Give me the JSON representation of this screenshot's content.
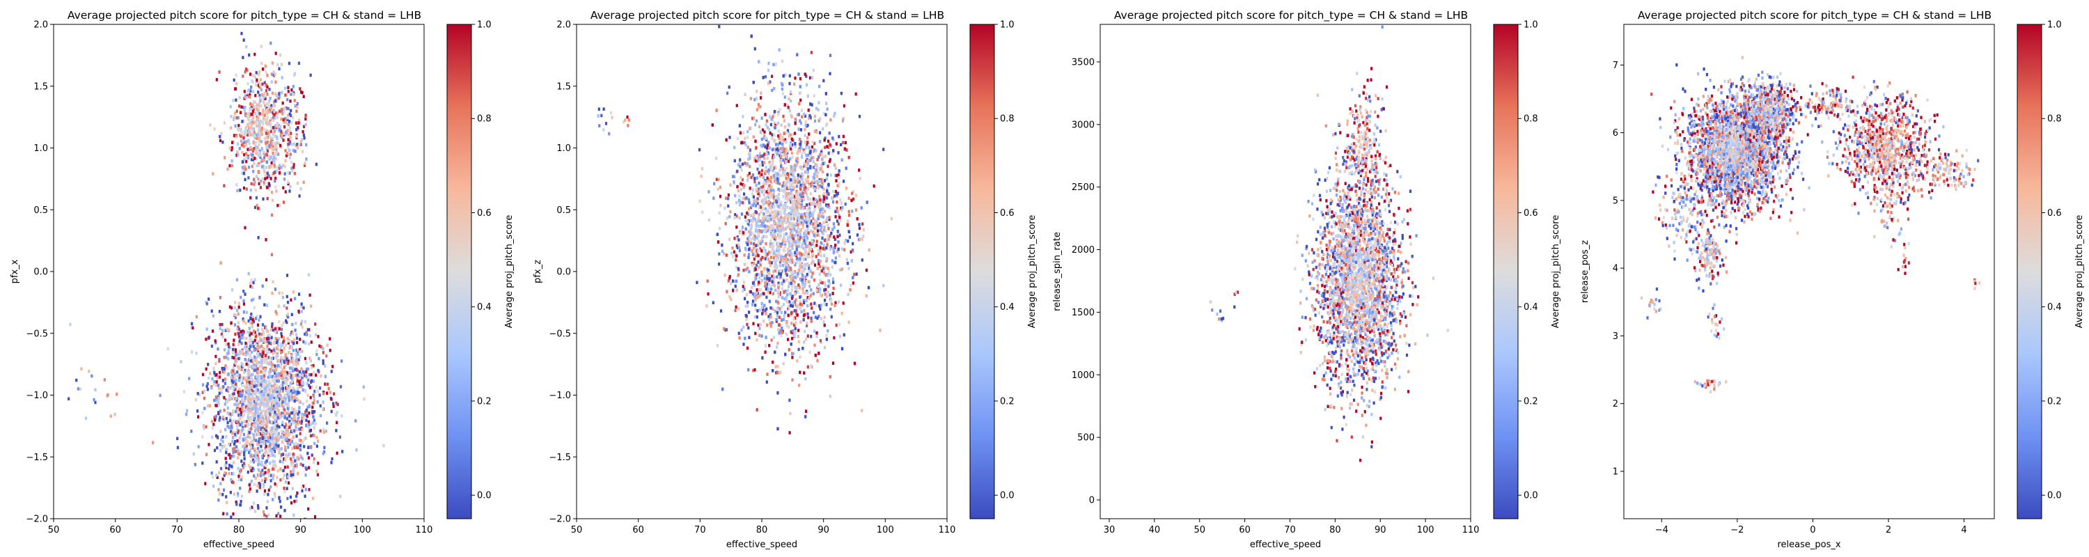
{
  "figure": {
    "colormap": [
      "#3b4cc0",
      "#6f92f3",
      "#aac7fd",
      "#dddcdc",
      "#f7b89c",
      "#e7745b",
      "#b40426"
    ]
  },
  "chart_data": [
    {
      "type": "heatmap",
      "title": "Average projected pitch score for pitch_type = CH & stand = LHB",
      "xlabel": "effective_speed",
      "ylabel": "pfx_x",
      "xlim": [
        50,
        110
      ],
      "ylim": [
        -2.0,
        2.0
      ],
      "xticks": [
        50,
        60,
        70,
        80,
        90,
        100,
        110
      ],
      "yticks": [
        -2.0,
        -1.5,
        -1.0,
        -0.5,
        0.0,
        0.5,
        1.0,
        1.5,
        2.0
      ],
      "ytick_labels": [
        "−2.0",
        "−1.5",
        "−1.0",
        "−0.5",
        "0.0",
        "0.5",
        "1.0",
        "1.5",
        "2.0"
      ],
      "colorbar": {
        "label": "Average proj_pitch_score",
        "ticks": [
          0.0,
          0.2,
          0.4,
          0.6,
          0.8,
          1.0
        ],
        "tick_labels": [
          "0.0",
          "0.2",
          "0.4",
          "0.6",
          "0.8",
          "1.0"
        ],
        "range": [
          -0.05,
          1.0
        ]
      },
      "clusters": [
        {
          "x": 84,
          "y": -1.05,
          "sx": 4.5,
          "sy": 0.38,
          "mean": 0.42,
          "n": 2400
        },
        {
          "x": 84,
          "y": 1.15,
          "sx": 3.0,
          "sy": 0.26,
          "mean": 0.55,
          "n": 750
        },
        {
          "x": 54.5,
          "y": -0.95,
          "sx": 1.0,
          "sy": 0.15,
          "mean": 0.2,
          "n": 12
        },
        {
          "x": 59,
          "y": -1.1,
          "sx": 0.6,
          "sy": 0.12,
          "mean": 0.7,
          "n": 6
        }
      ]
    },
    {
      "type": "heatmap",
      "title": "Average projected pitch score for pitch_type = CH & stand = LHB",
      "xlabel": "effective_speed",
      "ylabel": "pfx_z",
      "xlim": [
        50,
        110
      ],
      "ylim": [
        -2.0,
        2.0
      ],
      "xticks": [
        50,
        60,
        70,
        80,
        90,
        100,
        110
      ],
      "yticks": [
        -2.0,
        -1.5,
        -1.0,
        -0.5,
        0.0,
        0.5,
        1.0,
        1.5,
        2.0
      ],
      "ytick_labels": [
        "−2.0",
        "−1.5",
        "−1.0",
        "−0.5",
        "0.0",
        "0.5",
        "1.0",
        "1.5",
        "2.0"
      ],
      "colorbar": {
        "label": "Average proj_pitch_score",
        "ticks": [
          0.0,
          0.2,
          0.4,
          0.6,
          0.8,
          1.0
        ],
        "tick_labels": [
          "0.0",
          "0.2",
          "0.4",
          "0.6",
          "0.8",
          "1.0"
        ],
        "range": [
          -0.05,
          1.0
        ]
      },
      "clusters": [
        {
          "x": 84,
          "y": 0.4,
          "sx": 4.7,
          "sy": 0.5,
          "mean": 0.45,
          "n": 3200
        },
        {
          "x": 54.5,
          "y": 1.25,
          "sx": 1.0,
          "sy": 0.07,
          "mean": 0.2,
          "n": 10
        },
        {
          "x": 58,
          "y": 1.2,
          "sx": 0.6,
          "sy": 0.05,
          "mean": 0.7,
          "n": 5
        }
      ]
    },
    {
      "type": "heatmap",
      "title": "Average projected pitch score for pitch_type = CH & stand = LHB",
      "xlabel": "effective_speed",
      "ylabel": "release_spin_rate",
      "xlim": [
        28,
        110
      ],
      "ylim": [
        -150,
        3800
      ],
      "xticks": [
        30,
        40,
        50,
        60,
        70,
        80,
        90,
        100,
        110
      ],
      "yticks": [
        0,
        500,
        1000,
        1500,
        2000,
        2500,
        3000,
        3500
      ],
      "ytick_labels": [
        "0",
        "500",
        "1000",
        "1500",
        "2000",
        "2500",
        "3000",
        "3500"
      ],
      "colorbar": {
        "label": "Average proj_pitch_score",
        "ticks": [
          0.0,
          0.2,
          0.4,
          0.6,
          0.8,
          1.0
        ],
        "tick_labels": [
          "0.0",
          "0.2",
          "0.4",
          "0.6",
          "0.8",
          "1.0"
        ],
        "range": [
          -0.05,
          1.0
        ]
      },
      "clusters": [
        {
          "x": 85,
          "y": 1750,
          "sx": 4.6,
          "sy": 420,
          "mean": 0.45,
          "n": 2600
        },
        {
          "x": 86,
          "y": 2850,
          "sx": 2.2,
          "sy": 220,
          "mean": 0.6,
          "n": 220
        },
        {
          "x": 54,
          "y": 1500,
          "sx": 0.8,
          "sy": 60,
          "mean": 0.2,
          "n": 8
        },
        {
          "x": 58,
          "y": 1620,
          "sx": 0.5,
          "sy": 50,
          "mean": 0.7,
          "n": 4
        }
      ]
    },
    {
      "type": "heatmap",
      "title": "Average projected pitch score for pitch_type = CH & stand = LHB",
      "xlabel": "release_pos_x",
      "ylabel": "release_pos_z",
      "xlim": [
        -5.0,
        4.8
      ],
      "ylim": [
        0.3,
        7.6
      ],
      "xticks": [
        -4,
        -2,
        0,
        2,
        4
      ],
      "xtick_labels": [
        "−4",
        "−2",
        "0",
        "2",
        "4"
      ],
      "yticks": [
        1,
        2,
        3,
        4,
        5,
        6,
        7
      ],
      "ytick_labels": [
        "1",
        "2",
        "3",
        "4",
        "5",
        "6",
        "7"
      ],
      "colorbar": {
        "label": "Average proj_pitch_score",
        "ticks": [
          0.0,
          0.2,
          0.4,
          0.6,
          0.8,
          1.0
        ],
        "tick_labels": [
          "0.0",
          "0.2",
          "0.4",
          "0.6",
          "0.8",
          "1.0"
        ],
        "range": [
          -0.05,
          1.0
        ]
      },
      "clusters": [
        {
          "x": -2.1,
          "y": 5.75,
          "sx": 0.65,
          "sy": 0.4,
          "mean": 0.42,
          "n": 2600
        },
        {
          "x": -1.2,
          "y": 6.35,
          "sx": 0.35,
          "sy": 0.22,
          "mean": 0.45,
          "n": 500
        },
        {
          "x": -2.8,
          "y": 4.2,
          "sx": 0.18,
          "sy": 0.2,
          "mean": 0.5,
          "n": 120
        },
        {
          "x": 1.9,
          "y": 5.8,
          "sx": 0.55,
          "sy": 0.35,
          "mean": 0.6,
          "n": 900
        },
        {
          "x": 3.5,
          "y": 5.45,
          "sx": 0.4,
          "sy": 0.18,
          "mean": 0.6,
          "n": 120
        },
        {
          "x": 0.4,
          "y": 6.45,
          "sx": 0.35,
          "sy": 0.12,
          "mean": 0.6,
          "n": 110
        },
        {
          "x": 2.0,
          "y": 4.9,
          "sx": 0.2,
          "sy": 0.25,
          "mean": 0.65,
          "n": 60
        },
        {
          "x": 2.4,
          "y": 4.2,
          "sx": 0.08,
          "sy": 0.1,
          "mean": 0.7,
          "n": 12
        },
        {
          "x": -2.6,
          "y": 3.2,
          "sx": 0.12,
          "sy": 0.1,
          "mean": 0.5,
          "n": 22
        },
        {
          "x": -2.7,
          "y": 2.3,
          "sx": 0.15,
          "sy": 0.06,
          "mean": 0.5,
          "n": 24
        },
        {
          "x": -4.3,
          "y": 3.45,
          "sx": 0.12,
          "sy": 0.08,
          "mean": 0.5,
          "n": 16
        },
        {
          "x": 4.3,
          "y": 3.8,
          "sx": 0.05,
          "sy": 0.08,
          "mean": 0.7,
          "n": 6
        },
        {
          "x": -3.4,
          "y": 4.8,
          "sx": 0.35,
          "sy": 0.3,
          "mean": 0.4,
          "n": 130
        }
      ]
    }
  ]
}
